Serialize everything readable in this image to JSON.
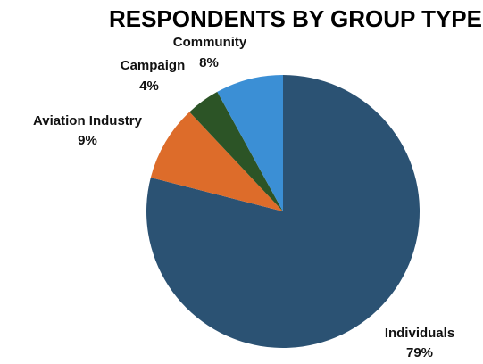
{
  "chart_data": {
    "type": "pie",
    "title": "RESPONDENTS BY GROUP TYPE",
    "categories": [
      "Individuals",
      "Aviation Industry",
      "Campaign",
      "Community"
    ],
    "values": [
      79,
      9,
      4,
      8
    ],
    "value_labels": [
      "79%",
      "9%",
      "4%",
      "8%"
    ],
    "colors": [
      "#2b5273",
      "#dd6c2a",
      "#2c5426",
      "#3b8fd5"
    ],
    "start_angle_deg": 0,
    "direction": "clockwise",
    "legend": "none"
  }
}
